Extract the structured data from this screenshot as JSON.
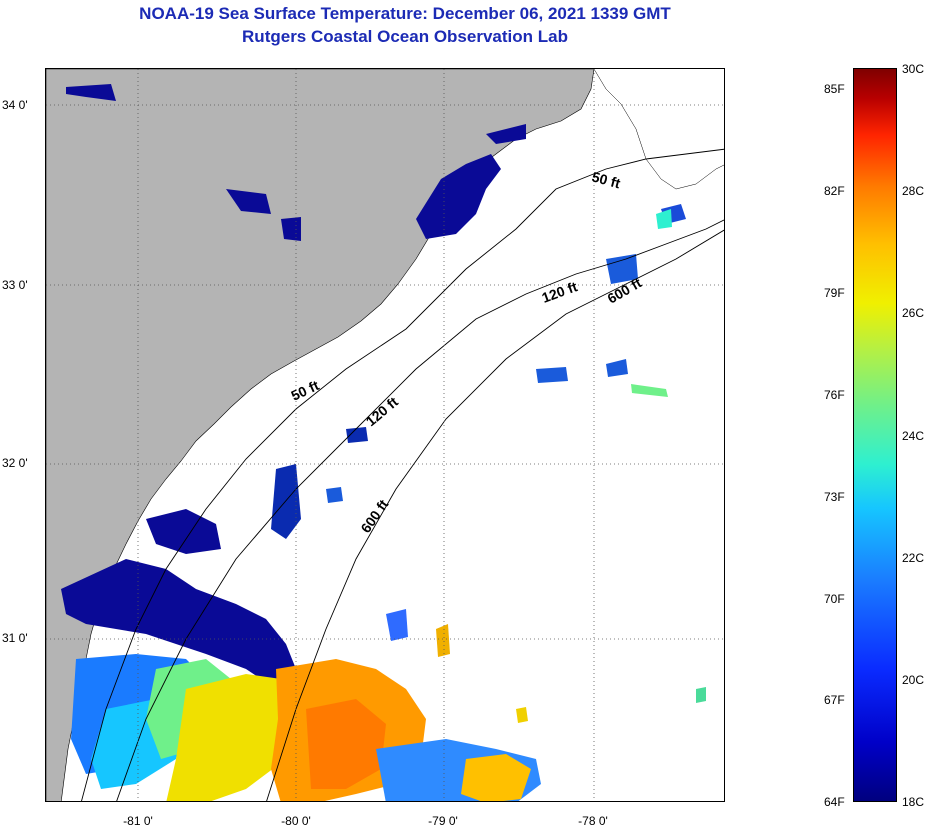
{
  "header": {
    "title": "NOAA-19 Sea Surface Temperature:  December 06, 2021 1339 GMT",
    "subtitle": "Rutgers Coastal Ocean Observation Lab"
  },
  "map": {
    "lat_labels": [
      "34 0'",
      "33 0'",
      "32 0'",
      "31 0'"
    ],
    "lon_labels": [
      "-81 0'",
      "-80 0'",
      "-79 0'",
      "-78 0'"
    ],
    "isobath_labels": [
      "50 ft",
      "120 ft",
      "600 ft",
      "50 ft",
      "120 ft",
      "600 ft"
    ],
    "colors": {
      "land": "#b4b4b4",
      "ocean_nodata": "#ffffff",
      "title": "#1c2bb5"
    }
  },
  "colorbar": {
    "fahrenheit_labels": [
      "85F",
      "82F",
      "79F",
      "76F",
      "73F",
      "70F",
      "67F",
      "64F"
    ],
    "celsius_labels": [
      "30C",
      "28C",
      "26C",
      "24C",
      "22C",
      "20C",
      "18C"
    ],
    "range_c": [
      18,
      30
    ],
    "range_f": [
      64,
      86
    ]
  }
}
